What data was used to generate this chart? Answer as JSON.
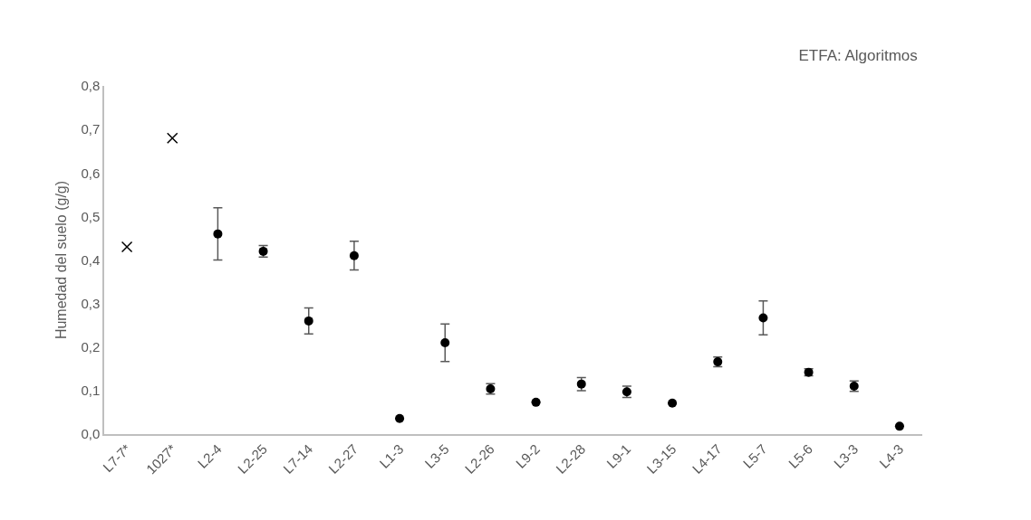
{
  "chart_data": {
    "type": "scatter",
    "title": "ETFA: Algoritmos",
    "ylabel": "Humedad del suelo (g/g)",
    "categories": [
      "L7-7*",
      "1027*",
      "L2-4",
      "L2-25",
      "L7-14",
      "L2-27",
      "L1-3",
      "L3-5",
      "L2-26",
      "L9-2",
      "L2-28",
      "L9-1",
      "L3-15",
      "L4-17",
      "L5-7",
      "L5-6",
      "L3-3",
      "L4-3"
    ],
    "series": [
      {
        "color": "#000000",
        "marker": "cross",
        "values": [
          0.43,
          0.68,
          null,
          null,
          null,
          null,
          null,
          null,
          null,
          null,
          null,
          null,
          null,
          null,
          null,
          null,
          null,
          null
        ]
      },
      {
        "color": "#000000",
        "marker": "circle",
        "values": [
          null,
          null,
          0.46,
          0.42,
          0.26,
          0.41,
          0.036,
          0.21,
          0.104,
          0.073,
          0.115,
          0.097,
          0.071,
          0.166,
          0.267,
          0.142,
          0.11,
          0.018
        ],
        "errors": [
          null,
          null,
          0.06,
          0.013,
          0.03,
          0.033,
          null,
          0.043,
          0.012,
          null,
          0.015,
          0.013,
          null,
          0.011,
          0.039,
          0.008,
          0.012,
          null
        ]
      }
    ],
    "ylim": [
      0,
      0.8
    ],
    "yticks": [
      {
        "value": 0,
        "label": "0,0"
      },
      {
        "value": 0.1,
        "label": "0,1"
      },
      {
        "value": 0.2,
        "label": "0,2"
      },
      {
        "value": 0.3,
        "label": "0,3"
      },
      {
        "value": 0.4,
        "label": "0,4"
      },
      {
        "value": 0.5,
        "label": "0,5"
      },
      {
        "value": 0.6,
        "label": "0,6"
      },
      {
        "value": 0.7,
        "label": "0,7"
      },
      {
        "value": 0.8,
        "label": "0,8"
      }
    ],
    "grid": false
  }
}
